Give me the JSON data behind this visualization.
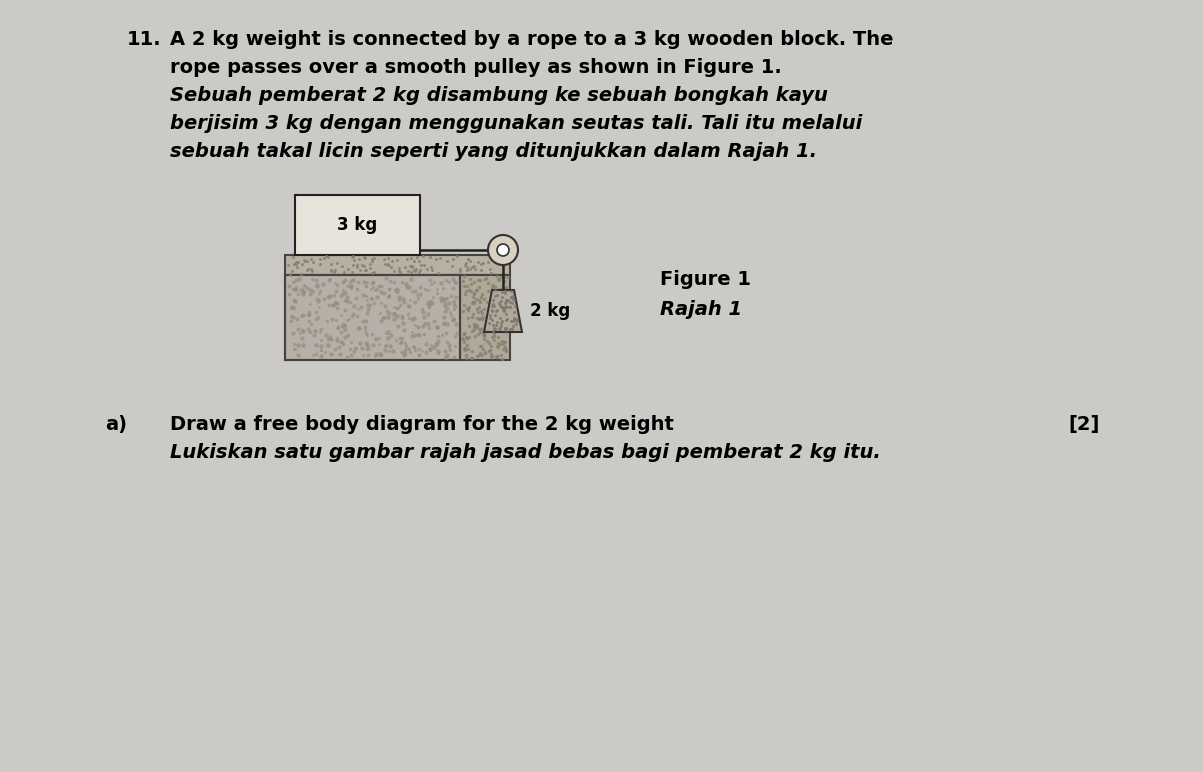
{
  "bg_color": "#cccac6",
  "text_color": "#000000",
  "question_num": "11.",
  "question_text_line1": "A 2 kg weight is connected by a rope to a 3 kg wooden block. The",
  "question_text_line2": "rope passes over a smooth pulley as shown in Figure 1.",
  "question_text_line3_italic": "Sebuah pemberat 2 kg disambung ke sebuah bongkah kayu",
  "question_text_line4_italic": "berjisim 3 kg dengan menggunakan seutas tali. Tali itu melalui",
  "question_text_line5_italic": "sebuah takal licin seperti yang ditunjukkan dalam Rajah 1.",
  "figure_label_line1": "Figure 1",
  "figure_label_line2": "Rajah 1",
  "part_a_label": "a)",
  "part_a_text1": "Draw a free body diagram for the 2 kg weight",
  "part_a_marks": "[2]",
  "part_a_text2_italic": "Lukiskan satu gambar rajah jasad bebas bagi pemberat 2 kg itu.",
  "block_label": "3 kg",
  "weight_label": "2 kg",
  "fontsize": 14
}
